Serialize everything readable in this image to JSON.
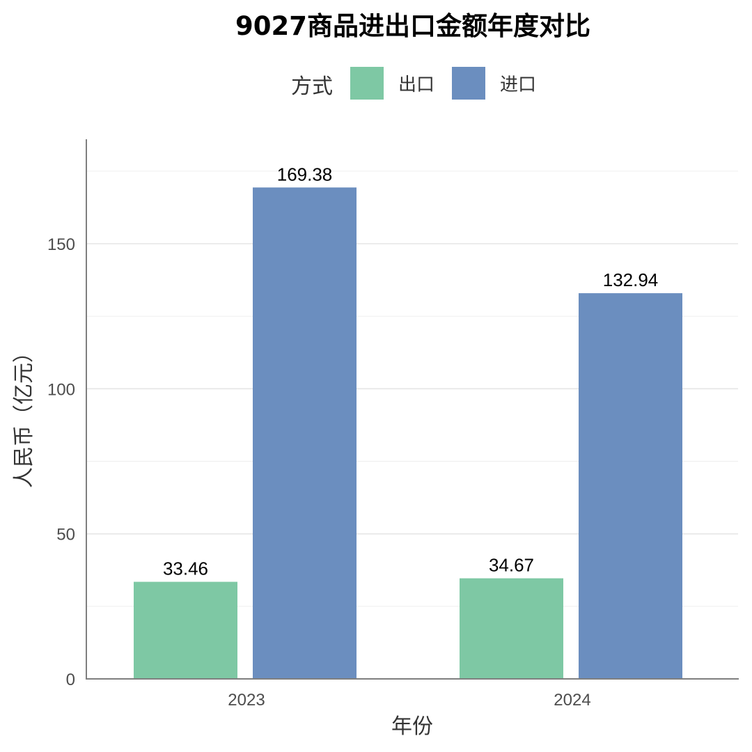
{
  "chart_data": {
    "type": "bar",
    "title": "9027商品进出口金额年度对比",
    "xlabel": "年份",
    "ylabel": "人民币（亿元）",
    "categories": [
      "2023",
      "2024"
    ],
    "series": [
      {
        "name": "出口",
        "color": "#7ec8a4",
        "values": [
          33.46,
          34.67
        ],
        "labels": [
          "33.46",
          "34.67"
        ]
      },
      {
        "name": "进口",
        "color": "#6b8ebf",
        "values": [
          169.38,
          132.94
        ],
        "labels": [
          "169.38",
          "132.94"
        ]
      }
    ],
    "legend": {
      "title": "方式",
      "position": "top"
    },
    "ylim": [
      0,
      186
    ],
    "yticks": [
      0,
      50,
      100,
      150
    ],
    "ytick_labels": [
      "0",
      "50",
      "100",
      "150"
    ],
    "grid": true
  }
}
